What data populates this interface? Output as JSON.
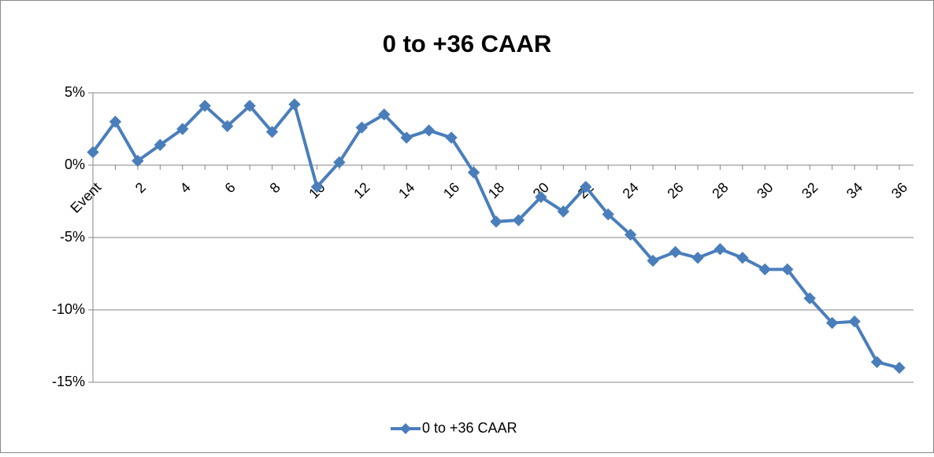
{
  "chart_data": {
    "type": "line",
    "title": "0 to +36 CAAR",
    "categories": [
      "Event",
      null,
      "2",
      null,
      "4",
      null,
      "6",
      null,
      "8",
      null,
      "10",
      null,
      "12",
      null,
      "14",
      null,
      "16",
      null,
      "18",
      null,
      "20",
      null,
      "22",
      null,
      "24",
      null,
      "26",
      null,
      "28",
      null,
      "30",
      null,
      "32",
      null,
      "34",
      null,
      "36"
    ],
    "series": [
      {
        "name": "0 to +36 CAAR",
        "color": "#4a7ebb",
        "values": [
          0.9,
          3.0,
          0.3,
          1.4,
          2.5,
          4.1,
          2.7,
          4.1,
          2.3,
          4.2,
          -1.5,
          0.2,
          2.6,
          3.5,
          1.9,
          2.4,
          1.9,
          -0.5,
          -3.9,
          -3.8,
          -2.2,
          -3.2,
          -1.5,
          -3.4,
          -4.8,
          -6.6,
          -6.0,
          -6.4,
          -5.8,
          -6.4,
          -7.2,
          -7.2,
          -9.2,
          -10.9,
          -10.8,
          -13.6,
          -14.0
        ]
      }
    ],
    "ylim": [
      -15,
      5
    ],
    "yticks": [
      {
        "value": -15,
        "label": "-15%"
      },
      {
        "value": -10,
        "label": "-10%"
      },
      {
        "value": -5,
        "label": "-5%"
      },
      {
        "value": 0,
        "label": "0%"
      },
      {
        "value": 5,
        "label": "5%"
      }
    ],
    "grid": true,
    "legend": "bottom"
  }
}
